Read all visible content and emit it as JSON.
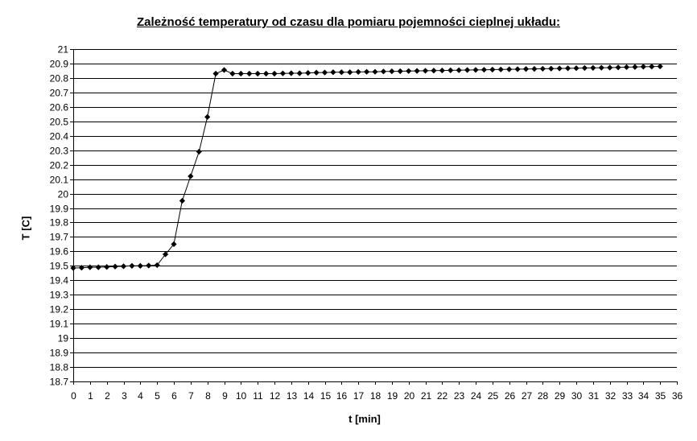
{
  "chart_data": {
    "type": "line",
    "title": "Zależność temperatury od czasu dla pomiaru pojemności cieplnej układu:",
    "xlabel": "t [min]",
    "ylabel": "T [C]",
    "xlim": [
      0,
      36
    ],
    "ylim": [
      18.7,
      21
    ],
    "x_ticks": [
      "0",
      "1",
      "2",
      "3",
      "4",
      "5",
      "6",
      "7",
      "8",
      "9",
      "10",
      "11",
      "12",
      "13",
      "14",
      "15",
      "16",
      "17",
      "18",
      "19",
      "20",
      "21",
      "22",
      "23",
      "24",
      "25",
      "26",
      "27",
      "28",
      "29",
      "30",
      "31",
      "32",
      "33",
      "34",
      "35",
      "36"
    ],
    "y_ticks": [
      "18.7",
      "18.8",
      "18.9",
      "19",
      "19.1",
      "19.2",
      "19.3",
      "19.4",
      "19.5",
      "19.6",
      "19.7",
      "19.8",
      "19.9",
      "20",
      "20.1",
      "20.2",
      "20.3",
      "20.4",
      "20.5",
      "20.6",
      "20.7",
      "20.8",
      "20.9",
      "21"
    ],
    "grid": "horizontal",
    "line_color": "#000000",
    "marker": "diamond",
    "series": [
      {
        "x": [
          0,
          0.5,
          1,
          1.5,
          2,
          2.5,
          3,
          3.5,
          4,
          4.5,
          5,
          5.5,
          6,
          6.5,
          7,
          7.5,
          8,
          8.5,
          9,
          9.5,
          10,
          10.5,
          11,
          11.5,
          12,
          12.5,
          13,
          13.5,
          14,
          14.5,
          15,
          15.5,
          16,
          16.5,
          17,
          17.5,
          18,
          18.5,
          19,
          19.5,
          20,
          20.5,
          21,
          21.5,
          22,
          22.5,
          23,
          23.5,
          24,
          24.5,
          25,
          25.5,
          26,
          26.5,
          27,
          27.5,
          28,
          28.5,
          29,
          29.5,
          30,
          30.5,
          31,
          31.5,
          32,
          32.5,
          33,
          33.5,
          34,
          34.5,
          35
        ],
        "values": [
          19.485,
          19.487,
          19.49,
          19.49,
          19.492,
          19.495,
          19.497,
          19.5,
          19.5,
          19.502,
          19.505,
          19.58,
          19.65,
          19.95,
          20.12,
          20.29,
          20.53,
          20.83,
          20.855,
          20.83,
          20.83,
          20.83,
          20.83,
          20.83,
          20.83,
          20.832,
          20.833,
          20.833,
          20.835,
          20.837,
          20.838,
          20.84,
          20.84,
          20.84,
          20.842,
          20.843,
          20.843,
          20.845,
          20.846,
          20.847,
          20.848,
          20.849,
          20.85,
          20.851,
          20.852,
          20.853,
          20.854,
          20.855,
          20.856,
          20.857,
          20.858,
          20.859,
          20.86,
          20.861,
          20.862,
          20.863,
          20.864,
          20.865,
          20.866,
          20.867,
          20.868,
          20.869,
          20.87,
          20.871,
          20.872,
          20.873,
          20.875,
          20.876,
          20.878,
          20.879,
          20.88
        ]
      }
    ]
  }
}
